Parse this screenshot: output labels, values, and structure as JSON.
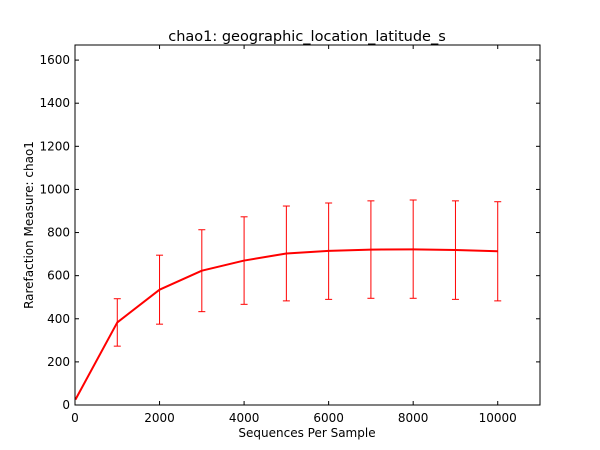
{
  "chart_data": {
    "type": "line",
    "title": "chao1: geographic_location_latitude_s",
    "xlabel": "Sequences Per Sample",
    "ylabel": "Rarefaction Measure: chao1",
    "xlim": [
      0,
      11000
    ],
    "ylim": [
      0,
      1670
    ],
    "xticks": [
      0,
      2000,
      4000,
      6000,
      8000,
      10000
    ],
    "yticks": [
      0,
      200,
      400,
      600,
      800,
      1000,
      1200,
      1400,
      1600
    ],
    "grid": false,
    "series": [
      {
        "color": "#ff0000",
        "x": [
          10,
          1000,
          2000,
          3000,
          4000,
          5000,
          6000,
          7000,
          8000,
          9000,
          10000
        ],
        "y": [
          25,
          383,
          535,
          623,
          670,
          703,
          715,
          721,
          722,
          719,
          713
        ],
        "yerr_low": [
          25,
          273,
          375,
          433,
          467,
          483,
          490,
          495,
          495,
          490,
          483
        ],
        "yerr_high": [
          25,
          493,
          695,
          813,
          873,
          923,
          937,
          947,
          951,
          947,
          943
        ]
      }
    ]
  }
}
